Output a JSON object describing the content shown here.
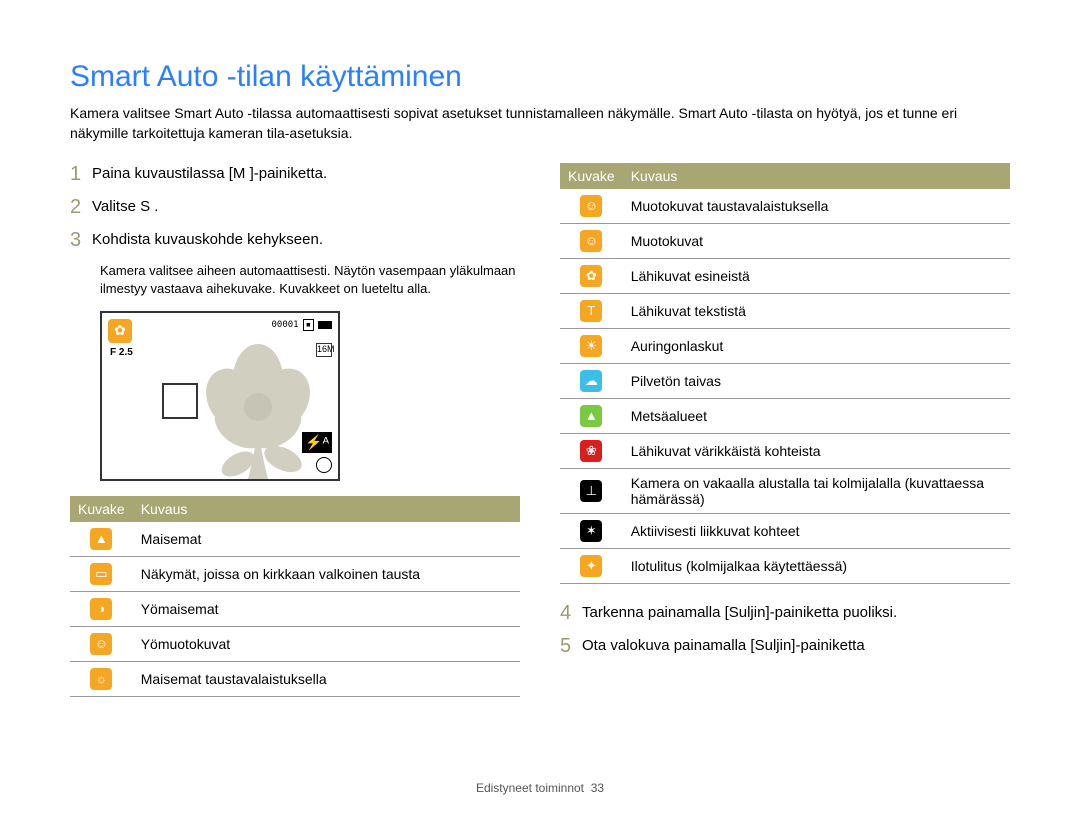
{
  "title": "Smart Auto -tilan käyttäminen",
  "intro": "Kamera valitsee Smart Auto -tilassa automaattisesti sopivat asetukset tunnistamalleen näkymälle. Smart Auto -tilasta on hyötyä, jos et tunne eri näkymille tarkoitettuja kameran tila-asetuksia.",
  "steps": {
    "s1": {
      "n": "1",
      "t": "Paina kuvaustilassa [M      ]-painiketta."
    },
    "s2": {
      "n": "2",
      "t": "Valitse S   ."
    },
    "s3": {
      "n": "3",
      "t": "Kohdista kuvauskohde kehykseen."
    },
    "s3sub": "Kamera valitsee aiheen automaattisesti. Näytön vasempaan yläkulmaan ilmestyy vastaava aihekuvake. Kuvakkeet on lueteltu alla.",
    "s4": {
      "n": "4",
      "t": "Tarkenna painamalla [Suljin]-painiketta puoliksi."
    },
    "s5": {
      "n": "5",
      "t": "Ota valokuva painamalla [Suljin]-painiketta"
    }
  },
  "screen": {
    "counter": "00001",
    "fval": "F 2.5",
    "sideicon": "16M",
    "flash": "⚡ᴬ"
  },
  "th": {
    "icon": "Kuvake",
    "desc": "Kuvaus"
  },
  "left_rows": [
    {
      "bg": "#f5a623",
      "g": "▲",
      "d": "Maisemat"
    },
    {
      "bg": "#f5a623",
      "g": "▭",
      "d": "Näkymät, joissa on kirkkaan valkoinen tausta"
    },
    {
      "bg": "#f5a623",
      "g": "◑",
      "d": "Yömaisemat"
    },
    {
      "bg": "#f5a623",
      "g": "☺",
      "d": "Yömuotokuvat"
    },
    {
      "bg": "#f5a623",
      "g": "☼",
      "d": "Maisemat taustavalaistuksella"
    }
  ],
  "right_rows": [
    {
      "bg": "#f5a623",
      "g": "☺",
      "d": "Muotokuvat taustavalaistuksella"
    },
    {
      "bg": "#f5a623",
      "g": "☺",
      "d": "Muotokuvat"
    },
    {
      "bg": "#f5a623",
      "g": "✿",
      "d": "Lähikuvat esineistä"
    },
    {
      "bg": "#f5a623",
      "g": "T",
      "d": "Lähikuvat tekstistä"
    },
    {
      "bg": "#f5a623",
      "g": "☀",
      "d": "Auringonlaskut"
    },
    {
      "bg": "#3ac0e8",
      "g": "☁",
      "d": "Pilvetön taivas"
    },
    {
      "bg": "#7ac943",
      "g": "▲",
      "d": "Metsäalueet"
    },
    {
      "bg": "#d91e1e",
      "g": "❀",
      "d": "Lähikuvat värikkäistä kohteista"
    },
    {
      "bg": "#000000",
      "g": "⊥",
      "d": "Kamera on vakaalla alustalla tai kolmijalalla (kuvattaessa hämärässä)"
    },
    {
      "bg": "#000000",
      "g": "✶",
      "d": "Aktiivisesti liikkuvat kohteet"
    },
    {
      "bg": "#f5a623",
      "g": "✦",
      "d": "Ilotulitus (kolmijalkaa käytettäessä)"
    }
  ],
  "footer": {
    "label": "Edistyneet toiminnot",
    "page": "33"
  }
}
